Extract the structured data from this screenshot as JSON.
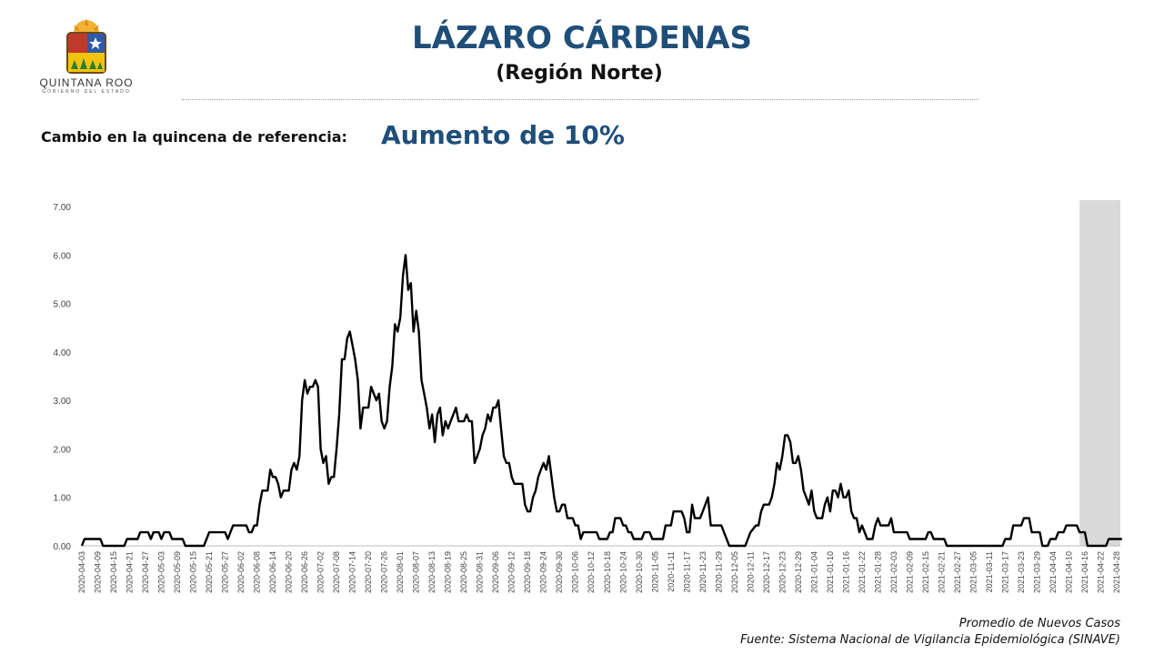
{
  "header": {
    "logo_text": "QUINTANA ROO",
    "logo_subtext": "GOBIERNO DEL ESTADO",
    "title": "LÁZARO CÁRDENAS",
    "subtitle": "(Región Norte)"
  },
  "summary": {
    "label": "Cambio en la quincena de referencia:",
    "value": "Aumento de 10%"
  },
  "footer": {
    "caption": "Promedio de Nuevos Casos",
    "source": "Fuente: Sistema Nacional de Vigilancia Epidemiológica (SINAVE)"
  },
  "colors": {
    "title": "#1f4e79",
    "line": "#000000",
    "shaded_band": "#d9d9d9"
  },
  "chart_data": {
    "type": "line",
    "x_start": "2020-04-03",
    "x_end": "2021-04-28",
    "ylim": [
      0,
      7
    ],
    "y_ticks": [
      "0.00",
      "1.00",
      "2.00",
      "3.00",
      "4.00",
      "5.00",
      "6.00",
      "7.00"
    ],
    "x_tick_labels": [
      "2020-04-03",
      "2020-04-09",
      "2020-04-15",
      "2020-04-21",
      "2020-04-27",
      "2020-05-03",
      "2020-05-09",
      "2020-05-15",
      "2020-05-21",
      "2020-05-27",
      "2020-06-02",
      "2020-06-08",
      "2020-06-14",
      "2020-06-20",
      "2020-06-26",
      "2020-07-02",
      "2020-07-08",
      "2020-07-14",
      "2020-07-20",
      "2020-07-26",
      "2020-08-01",
      "2020-08-07",
      "2020-08-13",
      "2020-08-19",
      "2020-08-25",
      "2020-08-31",
      "2020-09-06",
      "2020-09-12",
      "2020-09-18",
      "2020-09-24",
      "2020-09-30",
      "2020-10-06",
      "2020-10-12",
      "2020-10-18",
      "2020-10-24",
      "2020-10-30",
      "2020-11-05",
      "2020-11-11",
      "2020-11-17",
      "2020-11-23",
      "2020-11-29",
      "2020-12-05",
      "2020-12-11",
      "2020-12-17",
      "2020-12-23",
      "2020-12-29",
      "2021-01-04",
      "2021-01-10",
      "2021-01-16",
      "2021-01-22",
      "2021-01-28",
      "2021-02-03",
      "2021-02-09",
      "2021-02-15",
      "2021-02-21",
      "2021-02-27",
      "2021-03-05",
      "2021-03-11",
      "2021-03-17",
      "2021-03-23",
      "2021-03-29",
      "2021-04-04",
      "2021-04-10",
      "2021-04-16",
      "2021-04-22",
      "2021-04-28"
    ],
    "shaded_from": "2021-04-14",
    "points": [
      [
        "2020-04-03",
        0.0
      ],
      [
        "2020-04-04",
        0.14
      ],
      [
        "2020-04-10",
        0.14
      ],
      [
        "2020-04-11",
        0.0
      ],
      [
        "2020-04-19",
        0.0
      ],
      [
        "2020-04-20",
        0.14
      ],
      [
        "2020-04-24",
        0.14
      ],
      [
        "2020-04-25",
        0.28
      ],
      [
        "2020-04-28",
        0.28
      ],
      [
        "2020-04-29",
        0.14
      ],
      [
        "2020-04-30",
        0.28
      ],
      [
        "2020-05-02",
        0.28
      ],
      [
        "2020-05-03",
        0.14
      ],
      [
        "2020-05-04",
        0.28
      ],
      [
        "2020-05-06",
        0.28
      ],
      [
        "2020-05-07",
        0.14
      ],
      [
        "2020-05-11",
        0.14
      ],
      [
        "2020-05-12",
        0.0
      ],
      [
        "2020-05-19",
        0.0
      ],
      [
        "2020-05-21",
        0.28
      ],
      [
        "2020-05-27",
        0.28
      ],
      [
        "2020-05-28",
        0.14
      ],
      [
        "2020-05-30",
        0.42
      ],
      [
        "2020-06-04",
        0.42
      ],
      [
        "2020-06-05",
        0.28
      ],
      [
        "2020-06-06",
        0.28
      ],
      [
        "2020-06-07",
        0.42
      ],
      [
        "2020-06-08",
        0.42
      ],
      [
        "2020-06-09",
        0.85
      ],
      [
        "2020-06-10",
        1.14
      ],
      [
        "2020-06-12",
        1.14
      ],
      [
        "2020-06-13",
        1.57
      ],
      [
        "2020-06-14",
        1.42
      ],
      [
        "2020-06-15",
        1.42
      ],
      [
        "2020-06-16",
        1.28
      ],
      [
        "2020-06-17",
        1.0
      ],
      [
        "2020-06-18",
        1.14
      ],
      [
        "2020-06-19",
        1.14
      ],
      [
        "2020-06-20",
        1.14
      ],
      [
        "2020-06-21",
        1.57
      ],
      [
        "2020-06-22",
        1.71
      ],
      [
        "2020-06-23",
        1.57
      ],
      [
        "2020-06-24",
        1.85
      ],
      [
        "2020-06-25",
        3.0
      ],
      [
        "2020-06-26",
        3.42
      ],
      [
        "2020-06-27",
        3.14
      ],
      [
        "2020-06-28",
        3.28
      ],
      [
        "2020-06-29",
        3.28
      ],
      [
        "2020-06-30",
        3.42
      ],
      [
        "2020-07-01",
        3.28
      ],
      [
        "2020-07-02",
        2.0
      ],
      [
        "2020-07-03",
        1.71
      ],
      [
        "2020-07-04",
        1.85
      ],
      [
        "2020-07-05",
        1.28
      ],
      [
        "2020-07-06",
        1.42
      ],
      [
        "2020-07-07",
        1.42
      ],
      [
        "2020-07-08",
        2.0
      ],
      [
        "2020-07-09",
        2.71
      ],
      [
        "2020-07-10",
        3.85
      ],
      [
        "2020-07-11",
        3.85
      ],
      [
        "2020-07-12",
        4.28
      ],
      [
        "2020-07-13",
        4.42
      ],
      [
        "2020-07-14",
        4.14
      ],
      [
        "2020-07-15",
        3.85
      ],
      [
        "2020-07-16",
        3.42
      ],
      [
        "2020-07-17",
        2.42
      ],
      [
        "2020-07-18",
        2.85
      ],
      [
        "2020-07-19",
        2.85
      ],
      [
        "2020-07-20",
        2.85
      ],
      [
        "2020-07-21",
        3.28
      ],
      [
        "2020-07-22",
        3.14
      ],
      [
        "2020-07-23",
        3.0
      ],
      [
        "2020-07-24",
        3.14
      ],
      [
        "2020-07-25",
        2.57
      ],
      [
        "2020-07-26",
        2.42
      ],
      [
        "2020-07-27",
        2.57
      ],
      [
        "2020-07-28",
        3.28
      ],
      [
        "2020-07-29",
        3.71
      ],
      [
        "2020-07-30",
        4.57
      ],
      [
        "2020-07-31",
        4.42
      ],
      [
        "2020-08-01",
        4.71
      ],
      [
        "2020-08-02",
        5.57
      ],
      [
        "2020-08-03",
        6.0
      ],
      [
        "2020-08-04",
        5.28
      ],
      [
        "2020-08-05",
        5.42
      ],
      [
        "2020-08-06",
        4.42
      ],
      [
        "2020-08-07",
        4.85
      ],
      [
        "2020-08-08",
        4.42
      ],
      [
        "2020-08-09",
        3.42
      ],
      [
        "2020-08-10",
        3.14
      ],
      [
        "2020-08-11",
        2.85
      ],
      [
        "2020-08-12",
        2.42
      ],
      [
        "2020-08-13",
        2.71
      ],
      [
        "2020-08-14",
        2.14
      ],
      [
        "2020-08-15",
        2.71
      ],
      [
        "2020-08-16",
        2.85
      ],
      [
        "2020-08-17",
        2.28
      ],
      [
        "2020-08-18",
        2.57
      ],
      [
        "2020-08-19",
        2.42
      ],
      [
        "2020-08-20",
        2.57
      ],
      [
        "2020-08-21",
        2.71
      ],
      [
        "2020-08-22",
        2.85
      ],
      [
        "2020-08-23",
        2.57
      ],
      [
        "2020-08-24",
        2.57
      ],
      [
        "2020-08-25",
        2.57
      ],
      [
        "2020-08-26",
        2.71
      ],
      [
        "2020-08-27",
        2.57
      ],
      [
        "2020-08-28",
        2.57
      ],
      [
        "2020-08-29",
        1.71
      ],
      [
        "2020-08-30",
        1.85
      ],
      [
        "2020-08-31",
        2.0
      ],
      [
        "2020-09-01",
        2.28
      ],
      [
        "2020-09-02",
        2.42
      ],
      [
        "2020-09-03",
        2.71
      ],
      [
        "2020-09-04",
        2.57
      ],
      [
        "2020-09-05",
        2.85
      ],
      [
        "2020-09-06",
        2.85
      ],
      [
        "2020-09-07",
        3.0
      ],
      [
        "2020-09-08",
        2.42
      ],
      [
        "2020-09-09",
        1.85
      ],
      [
        "2020-09-10",
        1.71
      ],
      [
        "2020-09-11",
        1.71
      ],
      [
        "2020-09-12",
        1.42
      ],
      [
        "2020-09-13",
        1.28
      ],
      [
        "2020-09-14",
        1.28
      ],
      [
        "2020-09-15",
        1.28
      ],
      [
        "2020-09-16",
        1.28
      ],
      [
        "2020-09-17",
        0.85
      ],
      [
        "2020-09-18",
        0.71
      ],
      [
        "2020-09-19",
        0.71
      ],
      [
        "2020-09-20",
        1.0
      ],
      [
        "2020-09-21",
        1.14
      ],
      [
        "2020-09-22",
        1.42
      ],
      [
        "2020-09-23",
        1.57
      ],
      [
        "2020-09-24",
        1.71
      ],
      [
        "2020-09-25",
        1.57
      ],
      [
        "2020-09-26",
        1.85
      ],
      [
        "2020-09-27",
        1.42
      ],
      [
        "2020-09-28",
        1.0
      ],
      [
        "2020-09-29",
        0.71
      ],
      [
        "2020-09-30",
        0.71
      ],
      [
        "2020-10-01",
        0.85
      ],
      [
        "2020-10-02",
        0.85
      ],
      [
        "2020-10-03",
        0.57
      ],
      [
        "2020-10-04",
        0.57
      ],
      [
        "2020-10-05",
        0.57
      ],
      [
        "2020-10-06",
        0.42
      ],
      [
        "2020-10-07",
        0.42
      ],
      [
        "2020-10-08",
        0.14
      ],
      [
        "2020-10-09",
        0.28
      ],
      [
        "2020-10-14",
        0.28
      ],
      [
        "2020-10-15",
        0.14
      ],
      [
        "2020-10-18",
        0.14
      ],
      [
        "2020-10-19",
        0.28
      ],
      [
        "2020-10-20",
        0.28
      ],
      [
        "2020-10-21",
        0.57
      ],
      [
        "2020-10-23",
        0.57
      ],
      [
        "2020-10-24",
        0.42
      ],
      [
        "2020-10-25",
        0.42
      ],
      [
        "2020-10-26",
        0.28
      ],
      [
        "2020-10-27",
        0.28
      ],
      [
        "2020-10-28",
        0.14
      ],
      [
        "2020-10-31",
        0.14
      ],
      [
        "2020-11-01",
        0.28
      ],
      [
        "2020-11-03",
        0.28
      ],
      [
        "2020-11-04",
        0.14
      ],
      [
        "2020-11-08",
        0.14
      ],
      [
        "2020-11-09",
        0.42
      ],
      [
        "2020-11-11",
        0.42
      ],
      [
        "2020-11-12",
        0.71
      ],
      [
        "2020-11-15",
        0.71
      ],
      [
        "2020-11-16",
        0.57
      ],
      [
        "2020-11-17",
        0.28
      ],
      [
        "2020-11-18",
        0.28
      ],
      [
        "2020-11-19",
        0.85
      ],
      [
        "2020-11-20",
        0.57
      ],
      [
        "2020-11-22",
        0.57
      ],
      [
        "2020-11-23",
        0.71
      ],
      [
        "2020-11-25",
        1.0
      ],
      [
        "2020-11-26",
        0.42
      ],
      [
        "2020-11-30",
        0.42
      ],
      [
        "2020-12-01",
        0.28
      ],
      [
        "2020-12-03",
        0.0
      ],
      [
        "2020-12-09",
        0.0
      ],
      [
        "2020-12-11",
        0.28
      ],
      [
        "2020-12-13",
        0.42
      ],
      [
        "2020-12-14",
        0.42
      ],
      [
        "2020-12-15",
        0.71
      ],
      [
        "2020-12-16",
        0.85
      ],
      [
        "2020-12-18",
        0.85
      ],
      [
        "2020-12-19",
        1.0
      ],
      [
        "2020-12-20",
        1.28
      ],
      [
        "2020-12-21",
        1.71
      ],
      [
        "2020-12-22",
        1.57
      ],
      [
        "2020-12-23",
        1.85
      ],
      [
        "2020-12-24",
        2.28
      ],
      [
        "2020-12-25",
        2.28
      ],
      [
        "2020-12-26",
        2.14
      ],
      [
        "2020-12-27",
        1.71
      ],
      [
        "2020-12-28",
        1.71
      ],
      [
        "2020-12-29",
        1.85
      ],
      [
        "2020-12-30",
        1.57
      ],
      [
        "2020-12-31",
        1.14
      ],
      [
        "2021-01-01",
        1.0
      ],
      [
        "2021-01-02",
        0.85
      ],
      [
        "2021-01-03",
        1.14
      ],
      [
        "2021-01-04",
        0.71
      ],
      [
        "2021-01-05",
        0.57
      ],
      [
        "2021-01-07",
        0.57
      ],
      [
        "2021-01-08",
        0.85
      ],
      [
        "2021-01-09",
        1.0
      ],
      [
        "2021-01-10",
        0.71
      ],
      [
        "2021-01-11",
        1.14
      ],
      [
        "2021-01-12",
        1.14
      ],
      [
        "2021-01-13",
        1.0
      ],
      [
        "2021-01-14",
        1.28
      ],
      [
        "2021-01-15",
        1.0
      ],
      [
        "2021-01-16",
        1.0
      ],
      [
        "2021-01-17",
        1.14
      ],
      [
        "2021-01-18",
        0.71
      ],
      [
        "2021-01-19",
        0.57
      ],
      [
        "2021-01-20",
        0.57
      ],
      [
        "2021-01-21",
        0.28
      ],
      [
        "2021-01-22",
        0.42
      ],
      [
        "2021-01-23",
        0.28
      ],
      [
        "2021-01-24",
        0.14
      ],
      [
        "2021-01-26",
        0.14
      ],
      [
        "2021-01-27",
        0.42
      ],
      [
        "2021-01-28",
        0.57
      ],
      [
        "2021-01-29",
        0.42
      ],
      [
        "2021-02-01",
        0.42
      ],
      [
        "2021-02-02",
        0.57
      ],
      [
        "2021-02-03",
        0.28
      ],
      [
        "2021-02-08",
        0.28
      ],
      [
        "2021-02-09",
        0.14
      ],
      [
        "2021-02-15",
        0.14
      ],
      [
        "2021-02-16",
        0.28
      ],
      [
        "2021-02-17",
        0.28
      ],
      [
        "2021-02-18",
        0.14
      ],
      [
        "2021-02-22",
        0.14
      ],
      [
        "2021-02-23",
        0.0
      ],
      [
        "2021-03-16",
        0.0
      ],
      [
        "2021-03-17",
        0.14
      ],
      [
        "2021-03-19",
        0.14
      ],
      [
        "2021-03-20",
        0.42
      ],
      [
        "2021-03-23",
        0.42
      ],
      [
        "2021-03-24",
        0.57
      ],
      [
        "2021-03-26",
        0.57
      ],
      [
        "2021-03-27",
        0.28
      ],
      [
        "2021-03-30",
        0.28
      ],
      [
        "2021-03-31",
        0.0
      ],
      [
        "2021-04-02",
        0.0
      ],
      [
        "2021-04-03",
        0.14
      ],
      [
        "2021-04-05",
        0.14
      ],
      [
        "2021-04-06",
        0.28
      ],
      [
        "2021-04-08",
        0.28
      ],
      [
        "2021-04-09",
        0.42
      ],
      [
        "2021-04-13",
        0.42
      ],
      [
        "2021-04-14",
        0.28
      ],
      [
        "2021-04-16",
        0.28
      ],
      [
        "2021-04-17",
        0.0
      ],
      [
        "2021-04-24",
        0.0
      ],
      [
        "2021-04-25",
        0.14
      ],
      [
        "2021-04-30",
        0.14
      ]
    ]
  }
}
